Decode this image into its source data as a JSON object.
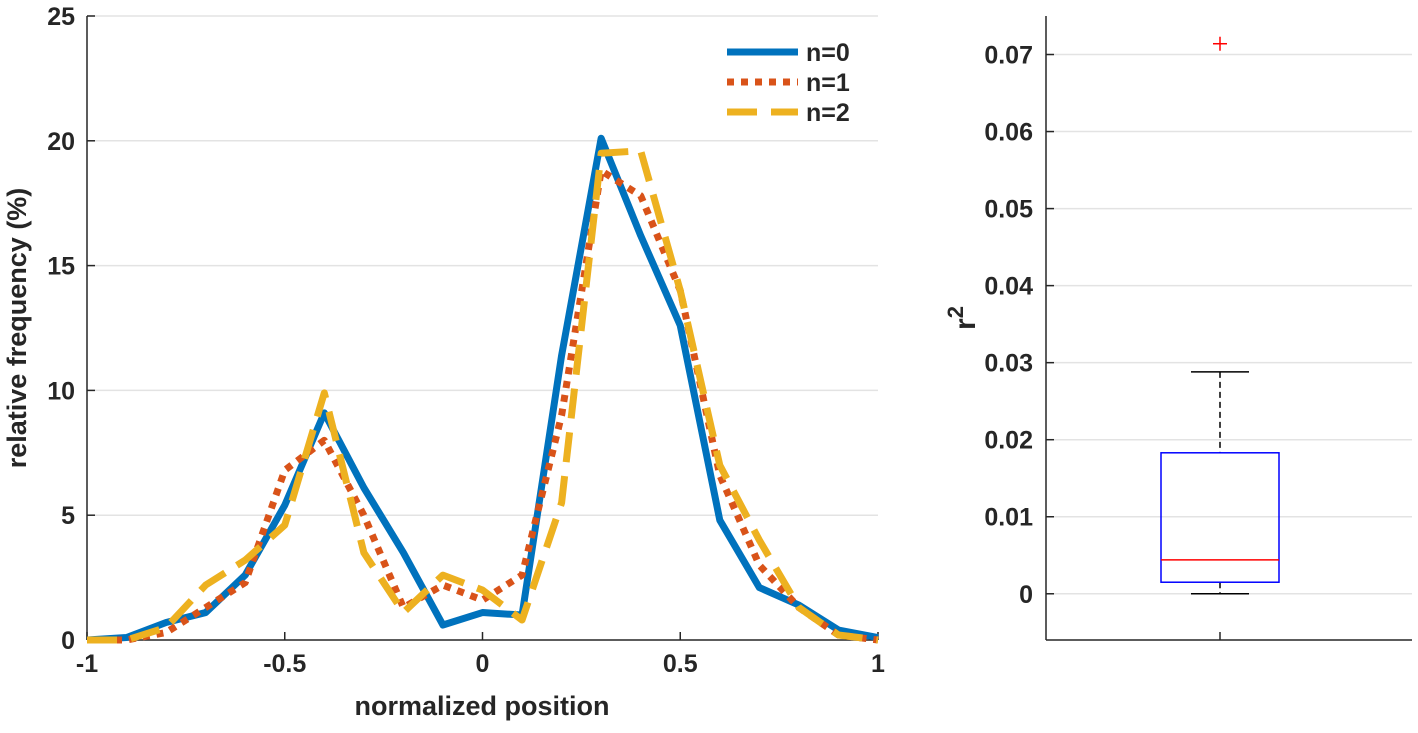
{
  "chart_data": [
    {
      "type": "line",
      "title": "",
      "xlabel": "normalized position",
      "ylabel": "relative frequency (%)",
      "xlim": [
        -1,
        1
      ],
      "ylim": [
        0,
        25
      ],
      "xticks": [
        -1,
        -0.5,
        0,
        0.5,
        1
      ],
      "xtick_labels": [
        "-1",
        "-0.5",
        "0",
        "0.5",
        "1"
      ],
      "yticks": [
        0,
        5,
        10,
        15,
        20,
        25
      ],
      "ytick_labels": [
        "0",
        "5",
        "10",
        "15",
        "20",
        "25"
      ],
      "grid": "horizontal",
      "legend_position": "top-right",
      "x": [
        -1,
        -0.9,
        -0.8,
        -0.7,
        -0.6,
        -0.5,
        -0.4,
        -0.3,
        -0.2,
        -0.1,
        0,
        0.1,
        0.2,
        0.3,
        0.4,
        0.5,
        0.6,
        0.7,
        0.8,
        0.9,
        1
      ],
      "series": [
        {
          "name": "n=0",
          "color": "#0072BD",
          "style": "solid",
          "values": [
            0,
            0.1,
            0.7,
            1.1,
            2.6,
            5.4,
            9.1,
            6.1,
            3.5,
            0.6,
            1.1,
            1.0,
            11.4,
            20.1,
            16.2,
            12.6,
            4.8,
            2.1,
            1.4,
            0.4,
            0.1
          ]
        },
        {
          "name": "n=1",
          "color": "#D95319",
          "style": "dotted",
          "values": [
            0,
            0,
            0.3,
            1.3,
            2.3,
            6.8,
            8.0,
            5.0,
            1.3,
            2.2,
            1.6,
            2.6,
            9.0,
            18.8,
            17.8,
            14.0,
            6.6,
            3.0,
            1.3,
            0.2,
            0
          ]
        },
        {
          "name": "n=2",
          "color": "#EDB120",
          "style": "dashed",
          "values": [
            0,
            0,
            0.5,
            2.2,
            3.2,
            4.6,
            9.9,
            3.5,
            1.1,
            2.6,
            2.0,
            0.8,
            5.5,
            19.5,
            19.6,
            14.0,
            7.0,
            4.0,
            1.3,
            0.2,
            0
          ]
        }
      ]
    },
    {
      "type": "box",
      "title": "",
      "xlabel": "",
      "ylabel": "r",
      "ylabel_superscript": "2",
      "ylim": [
        -0.006,
        0.075
      ],
      "yticks": [
        0,
        0.01,
        0.02,
        0.03,
        0.04,
        0.05,
        0.06,
        0.07
      ],
      "ytick_labels": [
        "0",
        "0.01",
        "0.02",
        "0.03",
        "0.04",
        "0.05",
        "0.06",
        "0.07"
      ],
      "grid": "horizontal",
      "box": {
        "min": 0,
        "q1": 0.0015,
        "median": 0.0044,
        "q3": 0.0183,
        "max": 0.0288,
        "outliers": [
          0.0714
        ]
      },
      "colors": {
        "box": "#0000FF",
        "median": "#FF0000",
        "whisker": "#000000",
        "outlier": "#FF0000"
      }
    }
  ]
}
